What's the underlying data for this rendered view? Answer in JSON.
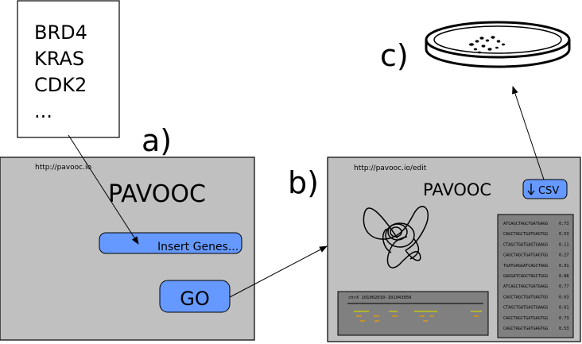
{
  "gene_list": {
    "items": [
      "BRD4",
      "KRAS",
      "CDK2",
      "..."
    ]
  },
  "labels": {
    "a": "a)",
    "b": "b)",
    "c": "c)"
  },
  "screen_a": {
    "url": "http://pavooc.io",
    "title": "PAVOOC",
    "input_placeholder": "Insert Genes...",
    "go_label": "GO"
  },
  "screen_b": {
    "url": "http://pavooc.io/edit",
    "title": "PAVOOC",
    "csv_label": "CSV",
    "genome_track_label": "chrX 101002010-101043950",
    "guides": [
      {
        "sequence": "ATCAGCTAGCTGATGAGG",
        "score": "0.73"
      },
      {
        "sequence": "CAGCTAGCTGATGAGTGG",
        "score": "0.53"
      },
      {
        "sequence": "CTAGCTGATGAGTGAAGG",
        "score": "0.11"
      },
      {
        "sequence": "CAGCTAGCTGATGAGTGG",
        "score": "0.27"
      },
      {
        "sequence": "TGATGAGGATCAGCTAGG",
        "score": "0.91"
      },
      {
        "sequence": "GAGGATCAGCTAGCTGGG",
        "score": "0.88"
      },
      {
        "sequence": "ATCAGCTAGCTGATGAGG",
        "score": "0.77"
      },
      {
        "sequence": "CAGCTAGCTGATGAGTGG",
        "score": "0.63"
      },
      {
        "sequence": "CTAGCTGATGAGTGAAGG",
        "score": "0.61"
      },
      {
        "sequence": "CAGCTAGCTGATGAGTGG",
        "score": "0.73"
      },
      {
        "sequence": "CAGCTAGCTGATGAGTGG",
        "score": "0.53"
      }
    ]
  },
  "colors": {
    "panel": "#c0c0c0",
    "button_fill": "#6699ff",
    "dark_panel": "#808080",
    "track_line": "#000000",
    "guide_yellow": "#d4d400",
    "guide_orange": "#f0a000"
  }
}
